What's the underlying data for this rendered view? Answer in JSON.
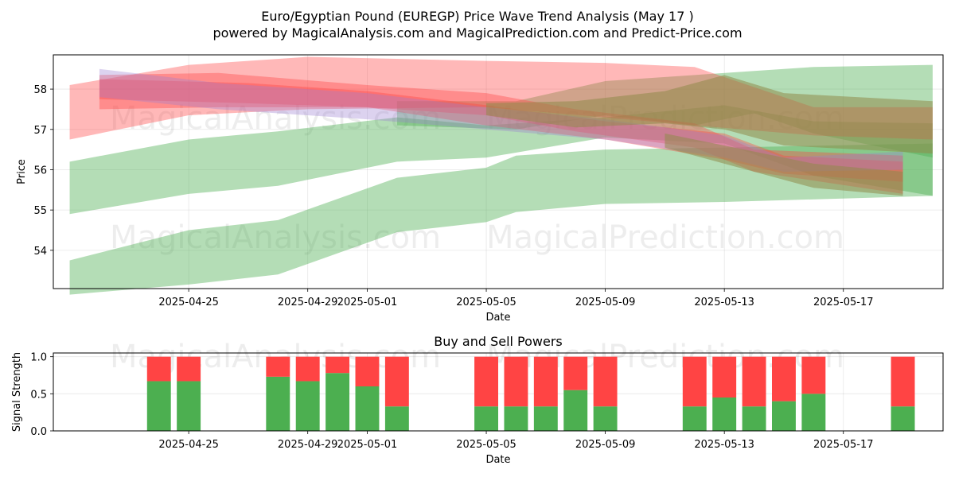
{
  "title": "Euro/Egyptian Pound (EUREGP) Price Wave Trend Analysis (May 17 )",
  "subtitle": "powered by MagicalAnalysis.com and MagicalPrediction.com and Predict-Price.com",
  "watermark_left": "MagicalAnalysis.com",
  "watermark_right": "MagicalPrediction.com",
  "chart_data": [
    {
      "type": "area",
      "title": "",
      "xlabel": "Date",
      "ylabel": "Price",
      "x_tick_labels": [
        "2025-04-25",
        "2025-04-29",
        "2025-05-01",
        "2025-05-05",
        "2025-05-09",
        "2025-05-13",
        "2025-05-17"
      ],
      "y_tick_labels": [
        "54",
        "55",
        "56",
        "57",
        "58"
      ],
      "ylim": [
        53.05,
        58.85
      ],
      "xlim": [
        "2025-04-21",
        "2025-05-20"
      ],
      "grid": true,
      "colors": {
        "buy": "#4caf50",
        "sell": "#ff4444"
      },
      "series": [
        {
          "kind": "buy",
          "points": [
            {
              "x": "2025-04-21",
              "upper": 56.2,
              "lower": 54.9
            },
            {
              "x": "2025-04-25",
              "upper": 56.75,
              "lower": 55.4
            },
            {
              "x": "2025-04-28",
              "upper": 56.95,
              "lower": 55.6
            },
            {
              "x": "2025-05-02",
              "upper": 57.3,
              "lower": 56.2
            },
            {
              "x": "2025-05-05",
              "upper": 57.1,
              "lower": 56.3
            },
            {
              "x": "2025-05-09",
              "upper": 57.3,
              "lower": 56.8
            },
            {
              "x": "2025-05-13",
              "upper": 57.6,
              "lower": 56.65
            },
            {
              "x": "2025-05-16",
              "upper": 57.2,
              "lower": 55.85
            },
            {
              "x": "2025-05-20",
              "upper": 57.15,
              "lower": 55.35
            }
          ]
        },
        {
          "kind": "buy",
          "points": [
            {
              "x": "2025-04-21",
              "upper": 53.75,
              "lower": 52.9
            },
            {
              "x": "2025-04-25",
              "upper": 54.5,
              "lower": 53.15
            },
            {
              "x": "2025-04-28",
              "upper": 54.75,
              "lower": 53.4
            },
            {
              "x": "2025-05-02",
              "upper": 55.8,
              "lower": 54.45
            },
            {
              "x": "2025-05-05",
              "upper": 56.05,
              "lower": 54.7
            },
            {
              "x": "2025-05-06",
              "upper": 56.35,
              "lower": 54.95
            },
            {
              "x": "2025-05-09",
              "upper": 56.5,
              "lower": 55.15
            },
            {
              "x": "2025-05-13",
              "upper": 56.55,
              "lower": 55.2
            },
            {
              "x": "2025-05-20",
              "upper": 56.65,
              "lower": 55.35
            }
          ]
        },
        {
          "kind": "buy",
          "points": [
            {
              "x": "2025-05-02",
              "upper": 57.7,
              "lower": 57.1
            },
            {
              "x": "2025-05-06",
              "upper": 57.7,
              "lower": 57.0
            },
            {
              "x": "2025-05-09",
              "upper": 58.2,
              "lower": 57.35
            },
            {
              "x": "2025-05-12",
              "upper": 58.35,
              "lower": 57.1
            },
            {
              "x": "2025-05-14",
              "upper": 58.45,
              "lower": 57.4
            },
            {
              "x": "2025-05-16",
              "upper": 58.55,
              "lower": 56.9
            },
            {
              "x": "2025-05-20",
              "upper": 58.6,
              "lower": 56.3
            }
          ]
        },
        {
          "kind": "sell",
          "points": [
            {
              "x": "2025-04-21",
              "upper": 58.1,
              "lower": 56.75
            },
            {
              "x": "2025-04-25",
              "upper": 58.6,
              "lower": 57.35
            },
            {
              "x": "2025-04-29",
              "upper": 58.8,
              "lower": 57.5
            },
            {
              "x": "2025-05-05",
              "upper": 58.7,
              "lower": 57.55
            },
            {
              "x": "2025-05-09",
              "upper": 58.65,
              "lower": 57.3
            },
            {
              "x": "2025-05-12",
              "upper": 58.55,
              "lower": 57.1
            },
            {
              "x": "2025-05-16",
              "upper": 57.55,
              "lower": 56.85
            },
            {
              "x": "2025-05-20",
              "upper": 57.55,
              "lower": 56.75
            }
          ]
        },
        {
          "kind": "sell",
          "points": [
            {
              "x": "2025-04-22",
              "upper": 58.35,
              "lower": 57.5
            },
            {
              "x": "2025-04-26",
              "upper": 58.4,
              "lower": 57.55
            },
            {
              "x": "2025-05-01",
              "upper": 58.1,
              "lower": 57.55
            },
            {
              "x": "2025-05-05",
              "upper": 57.9,
              "lower": 57.35
            },
            {
              "x": "2025-05-08",
              "upper": 57.5,
              "lower": 56.95
            },
            {
              "x": "2025-05-12",
              "upper": 57.15,
              "lower": 56.55
            },
            {
              "x": "2025-05-14",
              "upper": 56.5,
              "lower": 55.95
            },
            {
              "x": "2025-05-19",
              "upper": 56.35,
              "lower": 55.4
            }
          ]
        },
        {
          "kind": "sell",
          "points": [
            {
              "x": "2025-04-22",
              "upper": 58.25,
              "lower": 57.75
            },
            {
              "x": "2025-04-27",
              "upper": 58.15,
              "lower": 57.65
            },
            {
              "x": "2025-05-01",
              "upper": 57.95,
              "lower": 57.55
            },
            {
              "x": "2025-05-05",
              "upper": 57.6,
              "lower": 57.1
            },
            {
              "x": "2025-05-09",
              "upper": 57.2,
              "lower": 56.75
            },
            {
              "x": "2025-05-13",
              "upper": 56.9,
              "lower": 56.25
            },
            {
              "x": "2025-05-15",
              "upper": 56.35,
              "lower": 55.9
            },
            {
              "x": "2025-05-19",
              "upper": 56.2,
              "lower": 55.7
            }
          ]
        },
        {
          "kind": "purple",
          "points": [
            {
              "x": "2025-04-22",
              "upper": 58.5,
              "lower": 57.8
            },
            {
              "x": "2025-04-26",
              "upper": 58.15,
              "lower": 57.5
            },
            {
              "x": "2025-05-01",
              "upper": 57.9,
              "lower": 57.25
            },
            {
              "x": "2025-05-05",
              "upper": 57.55,
              "lower": 57.0
            },
            {
              "x": "2025-05-09",
              "upper": 57.25,
              "lower": 56.75
            },
            {
              "x": "2025-05-13",
              "upper": 56.85,
              "lower": 56.3
            },
            {
              "x": "2025-05-15",
              "upper": 56.3,
              "lower": 55.95
            },
            {
              "x": "2025-05-19",
              "upper": 56.45,
              "lower": 56.0
            }
          ]
        },
        {
          "kind": "olive",
          "points": [
            {
              "x": "2025-05-05",
              "upper": 57.65,
              "lower": 57.35
            },
            {
              "x": "2025-05-08",
              "upper": 57.7,
              "lower": 57.05
            },
            {
              "x": "2025-05-11",
              "upper": 57.95,
              "lower": 57.15
            },
            {
              "x": "2025-05-13",
              "upper": 58.35,
              "lower": 57.0
            },
            {
              "x": "2025-05-15",
              "upper": 57.9,
              "lower": 56.6
            },
            {
              "x": "2025-05-20",
              "upper": 57.7,
              "lower": 56.4
            }
          ]
        },
        {
          "kind": "olive",
          "points": [
            {
              "x": "2025-05-11",
              "upper": 56.9,
              "lower": 56.55
            },
            {
              "x": "2025-05-14",
              "upper": 56.45,
              "lower": 55.95
            },
            {
              "x": "2025-05-16",
              "upper": 56.15,
              "lower": 55.55
            },
            {
              "x": "2025-05-19",
              "upper": 55.95,
              "lower": 55.35
            }
          ]
        }
      ]
    },
    {
      "type": "bar",
      "title": "Buy and Sell Powers",
      "xlabel": "Date",
      "ylabel": "Signal Strength",
      "x_tick_labels": [
        "2025-04-25",
        "2025-04-29",
        "2025-05-01",
        "2025-05-05",
        "2025-05-09",
        "2025-05-13",
        "2025-05-17"
      ],
      "y_tick_labels": [
        "0.0",
        "0.5",
        "1.0"
      ],
      "ylim": [
        0,
        1.05
      ],
      "grid": true,
      "colors": {
        "buy": "#4caf50",
        "sell": "#ff4444"
      },
      "series": [
        {
          "name": "buy",
          "values": [
            0.67,
            0.67,
            0.73,
            0.67,
            0.78,
            0.6,
            0.33,
            0.33,
            0.33,
            0.33,
            0.55,
            0.33,
            0.33,
            0.45,
            0.33,
            0.4,
            0.5,
            0.33
          ]
        },
        {
          "name": "sell",
          "values": [
            0.33,
            0.33,
            0.27,
            0.33,
            0.22,
            0.4,
            0.67,
            0.67,
            0.67,
            0.67,
            0.45,
            0.67,
            0.67,
            0.55,
            0.67,
            0.6,
            0.5,
            0.67
          ]
        }
      ],
      "x": [
        "2025-04-24",
        "2025-04-25",
        "2025-04-28",
        "2025-04-29",
        "2025-04-30",
        "2025-05-01",
        "2025-05-02",
        "2025-05-05",
        "2025-05-06",
        "2025-05-07",
        "2025-05-08",
        "2025-05-09",
        "2025-05-12",
        "2025-05-13",
        "2025-05-14",
        "2025-05-15",
        "2025-05-16",
        "2025-05-19"
      ]
    }
  ]
}
